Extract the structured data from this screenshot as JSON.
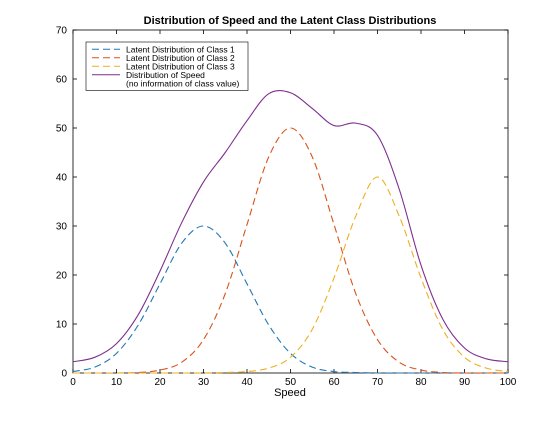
{
  "chart_data": {
    "type": "line",
    "title": "Distribution of Speed and the Latent Class Distributions",
    "xlabel": "Speed",
    "ylabel": "",
    "xlim": [
      0,
      100
    ],
    "ylim": [
      0,
      70
    ],
    "x_ticks": [
      0,
      10,
      20,
      30,
      40,
      50,
      60,
      70,
      80,
      90,
      100
    ],
    "y_ticks": [
      0,
      10,
      20,
      30,
      40,
      50,
      60,
      70
    ],
    "grid": false,
    "legend_position": "top-left",
    "series": [
      {
        "name": "Latent Distribution of Class 1",
        "style": "dashed",
        "color": "#1f77b4",
        "x": [
          0,
          5,
          10,
          15,
          20,
          25,
          30,
          35,
          40,
          45,
          50,
          55,
          60,
          65,
          70,
          75,
          80,
          85,
          90,
          95,
          100
        ],
        "y": [
          0.3,
          1.2,
          4.0,
          9.8,
          18.2,
          26.5,
          30.0,
          26.5,
          18.2,
          9.8,
          4.0,
          1.2,
          0.3,
          0.1,
          0.0,
          0.0,
          0.0,
          0.0,
          0.0,
          0.0,
          0.0
        ]
      },
      {
        "name": "Latent Distribution of Class 2",
        "style": "dashed",
        "color": "#d95319",
        "x": [
          0,
          5,
          10,
          15,
          20,
          25,
          30,
          35,
          40,
          45,
          50,
          55,
          60,
          65,
          70,
          75,
          80,
          85,
          90,
          95,
          100
        ],
        "y": [
          0.0,
          0.0,
          0.0,
          0.1,
          0.6,
          2.2,
          6.8,
          16.2,
          30.3,
          44.1,
          50.0,
          44.1,
          30.3,
          16.2,
          6.8,
          2.2,
          0.6,
          0.1,
          0.0,
          0.0,
          0.0
        ]
      },
      {
        "name": "Latent Distribution of Class 3",
        "style": "dashed",
        "color": "#edb120",
        "x": [
          0,
          5,
          10,
          15,
          20,
          25,
          30,
          35,
          40,
          45,
          50,
          55,
          60,
          65,
          70,
          75,
          80,
          85,
          90,
          95,
          100
        ],
        "y": [
          0.0,
          0.0,
          0.0,
          0.0,
          0.0,
          0.0,
          0.0,
          0.1,
          0.3,
          1.0,
          3.2,
          8.9,
          19.4,
          32.0,
          40.0,
          32.0,
          19.4,
          8.9,
          3.2,
          1.0,
          0.3
        ]
      },
      {
        "name": "Distribution of Speed\n(no information of class value)",
        "style": "solid",
        "color": "#7e2f8e",
        "x": [
          0,
          5,
          10,
          15,
          20,
          25,
          30,
          35,
          40,
          45,
          50,
          55,
          60,
          65,
          70,
          75,
          80,
          85,
          90,
          95,
          100
        ],
        "y": [
          2.3,
          3.2,
          6.0,
          11.9,
          20.8,
          30.7,
          39.0,
          45.0,
          51.5,
          57.0,
          57.2,
          54.0,
          50.5,
          51.0,
          48.5,
          37.5,
          22.0,
          11.0,
          5.1,
          2.9,
          2.3
        ]
      }
    ]
  }
}
